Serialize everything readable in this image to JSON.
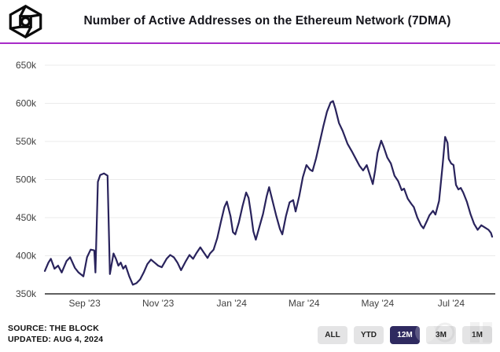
{
  "header": {
    "title": "Number of Active Addresses on the Ethereum Network (7DMA)",
    "logo_name": "the-block-logo"
  },
  "chart_data": {
    "type": "line",
    "title": "Number of Active Addresses on the Ethereum Network (7DMA)",
    "unit": "addresses",
    "series_name": "Active Addresses (7DMA)",
    "grid": "horizontal",
    "legend": "none",
    "ylim": [
      350000,
      650000
    ],
    "x_range": [
      "2023-07-30",
      "2024-08-04"
    ],
    "y_ticks": [
      {
        "label": "650k",
        "value": 650000
      },
      {
        "label": "600k",
        "value": 600000
      },
      {
        "label": "550k",
        "value": 550000
      },
      {
        "label": "500k",
        "value": 500000
      },
      {
        "label": "450k",
        "value": 450000
      },
      {
        "label": "400k",
        "value": 400000
      },
      {
        "label": "350k",
        "value": 350000
      }
    ],
    "x_ticks": [
      {
        "label": "Sep '23",
        "date": "2023-09-01"
      },
      {
        "label": "Nov '23",
        "date": "2023-11-01"
      },
      {
        "label": "Jan '24",
        "date": "2024-01-01"
      },
      {
        "label": "Mar '24",
        "date": "2024-03-01"
      },
      {
        "label": "May '24",
        "date": "2024-05-01"
      },
      {
        "label": "Jul '24",
        "date": "2024-07-01"
      }
    ],
    "points": [
      [
        "2023-07-30",
        380000
      ],
      [
        "2023-08-02",
        391000
      ],
      [
        "2023-08-04",
        396000
      ],
      [
        "2023-08-07",
        383000
      ],
      [
        "2023-08-10",
        387000
      ],
      [
        "2023-08-13",
        378000
      ],
      [
        "2023-08-17",
        393000
      ],
      [
        "2023-08-20",
        398000
      ],
      [
        "2023-08-24",
        384000
      ],
      [
        "2023-08-27",
        378000
      ],
      [
        "2023-08-31",
        373000
      ],
      [
        "2023-09-03",
        398000
      ],
      [
        "2023-09-06",
        408000
      ],
      [
        "2023-09-09",
        407000
      ],
      [
        "2023-09-10",
        378000
      ],
      [
        "2023-09-12",
        497000
      ],
      [
        "2023-09-14",
        506000
      ],
      [
        "2023-09-17",
        508000
      ],
      [
        "2023-09-20",
        505000
      ],
      [
        "2023-09-22",
        376000
      ],
      [
        "2023-09-25",
        403000
      ],
      [
        "2023-09-27",
        396000
      ],
      [
        "2023-09-29",
        387000
      ],
      [
        "2023-10-01",
        391000
      ],
      [
        "2023-10-03",
        383000
      ],
      [
        "2023-10-05",
        387000
      ],
      [
        "2023-10-08",
        373000
      ],
      [
        "2023-10-11",
        362000
      ],
      [
        "2023-10-14",
        364000
      ],
      [
        "2023-10-17",
        369000
      ],
      [
        "2023-10-20",
        378000
      ],
      [
        "2023-10-23",
        389000
      ],
      [
        "2023-10-26",
        395000
      ],
      [
        "2023-10-29",
        391000
      ],
      [
        "2023-11-01",
        387000
      ],
      [
        "2023-11-04",
        385000
      ],
      [
        "2023-11-08",
        396000
      ],
      [
        "2023-11-11",
        401000
      ],
      [
        "2023-11-14",
        398000
      ],
      [
        "2023-11-17",
        391000
      ],
      [
        "2023-11-20",
        381000
      ],
      [
        "2023-11-24",
        393000
      ],
      [
        "2023-11-27",
        401000
      ],
      [
        "2023-11-30",
        396000
      ],
      [
        "2023-12-03",
        404000
      ],
      [
        "2023-12-06",
        411000
      ],
      [
        "2023-12-09",
        404000
      ],
      [
        "2023-12-12",
        397000
      ],
      [
        "2023-12-14",
        403000
      ],
      [
        "2023-12-17",
        408000
      ],
      [
        "2023-12-20",
        423000
      ],
      [
        "2023-12-23",
        444000
      ],
      [
        "2023-12-26",
        464000
      ],
      [
        "2023-12-28",
        471000
      ],
      [
        "2023-12-31",
        452000
      ],
      [
        "2024-01-02",
        431000
      ],
      [
        "2024-01-04",
        428000
      ],
      [
        "2024-01-07",
        444000
      ],
      [
        "2024-01-10",
        465000
      ],
      [
        "2024-01-13",
        483000
      ],
      [
        "2024-01-15",
        476000
      ],
      [
        "2024-01-17",
        455000
      ],
      [
        "2024-01-19",
        432000
      ],
      [
        "2024-01-21",
        421000
      ],
      [
        "2024-01-24",
        438000
      ],
      [
        "2024-01-27",
        455000
      ],
      [
        "2024-01-30",
        478000
      ],
      [
        "2024-02-01",
        490000
      ],
      [
        "2024-02-04",
        471000
      ],
      [
        "2024-02-07",
        452000
      ],
      [
        "2024-02-10",
        435000
      ],
      [
        "2024-02-12",
        428000
      ],
      [
        "2024-02-15",
        452000
      ],
      [
        "2024-02-18",
        470000
      ],
      [
        "2024-02-21",
        473000
      ],
      [
        "2024-02-23",
        458000
      ],
      [
        "2024-02-26",
        478000
      ],
      [
        "2024-02-29",
        503000
      ],
      [
        "2024-03-03",
        519000
      ],
      [
        "2024-03-06",
        513000
      ],
      [
        "2024-03-08",
        511000
      ],
      [
        "2024-03-11",
        528000
      ],
      [
        "2024-03-14",
        549000
      ],
      [
        "2024-03-17",
        570000
      ],
      [
        "2024-03-20",
        589000
      ],
      [
        "2024-03-23",
        601000
      ],
      [
        "2024-03-25",
        603000
      ],
      [
        "2024-03-27",
        593000
      ],
      [
        "2024-03-30",
        574000
      ],
      [
        "2024-04-02",
        564000
      ],
      [
        "2024-04-06",
        547000
      ],
      [
        "2024-04-10",
        536000
      ],
      [
        "2024-04-13",
        527000
      ],
      [
        "2024-04-16",
        518000
      ],
      [
        "2024-04-19",
        512000
      ],
      [
        "2024-04-22",
        519000
      ],
      [
        "2024-04-25",
        504000
      ],
      [
        "2024-04-27",
        494000
      ],
      [
        "2024-04-29",
        512000
      ],
      [
        "2024-05-01",
        535000
      ],
      [
        "2024-05-04",
        551000
      ],
      [
        "2024-05-06",
        543000
      ],
      [
        "2024-05-09",
        529000
      ],
      [
        "2024-05-12",
        521000
      ],
      [
        "2024-05-15",
        505000
      ],
      [
        "2024-05-18",
        498000
      ],
      [
        "2024-05-21",
        486000
      ],
      [
        "2024-05-23",
        488000
      ],
      [
        "2024-05-26",
        475000
      ],
      [
        "2024-05-29",
        468000
      ],
      [
        "2024-05-31",
        464000
      ],
      [
        "2024-06-03",
        450000
      ],
      [
        "2024-06-06",
        440000
      ],
      [
        "2024-06-08",
        436000
      ],
      [
        "2024-06-11",
        446000
      ],
      [
        "2024-06-13",
        453000
      ],
      [
        "2024-06-16",
        459000
      ],
      [
        "2024-06-18",
        454000
      ],
      [
        "2024-06-21",
        472000
      ],
      [
        "2024-06-24",
        520000
      ],
      [
        "2024-06-26",
        556000
      ],
      [
        "2024-06-28",
        548000
      ],
      [
        "2024-06-29",
        527000
      ],
      [
        "2024-07-01",
        521000
      ],
      [
        "2024-07-03",
        519000
      ],
      [
        "2024-07-05",
        493000
      ],
      [
        "2024-07-07",
        487000
      ],
      [
        "2024-07-09",
        489000
      ],
      [
        "2024-07-11",
        483000
      ],
      [
        "2024-07-14",
        471000
      ],
      [
        "2024-07-17",
        455000
      ],
      [
        "2024-07-20",
        442000
      ],
      [
        "2024-07-23",
        434000
      ],
      [
        "2024-07-26",
        440000
      ],
      [
        "2024-07-29",
        437000
      ],
      [
        "2024-08-01",
        434000
      ],
      [
        "2024-08-03",
        430000
      ],
      [
        "2024-08-04",
        425000
      ]
    ]
  },
  "footer": {
    "source_line1": "SOURCE: THE BLOCK",
    "source_line2": "UPDATED: AUG 4, 2024",
    "range_buttons": [
      {
        "label": "ALL",
        "active": false
      },
      {
        "label": "YTD",
        "active": false
      },
      {
        "label": "12M",
        "active": true
      },
      {
        "label": "3M",
        "active": false
      },
      {
        "label": "1M",
        "active": false
      }
    ]
  },
  "colors": {
    "accent_divider": "#A82BC8",
    "line": "#29235C",
    "gridline": "#EBEBEB",
    "axis": "#2B2B2B",
    "tick_text": "#3F3F3F",
    "active_button_bg": "#2F2A60",
    "inactive_button_bg": "#E4E4E5",
    "title_text": "#16161D"
  }
}
